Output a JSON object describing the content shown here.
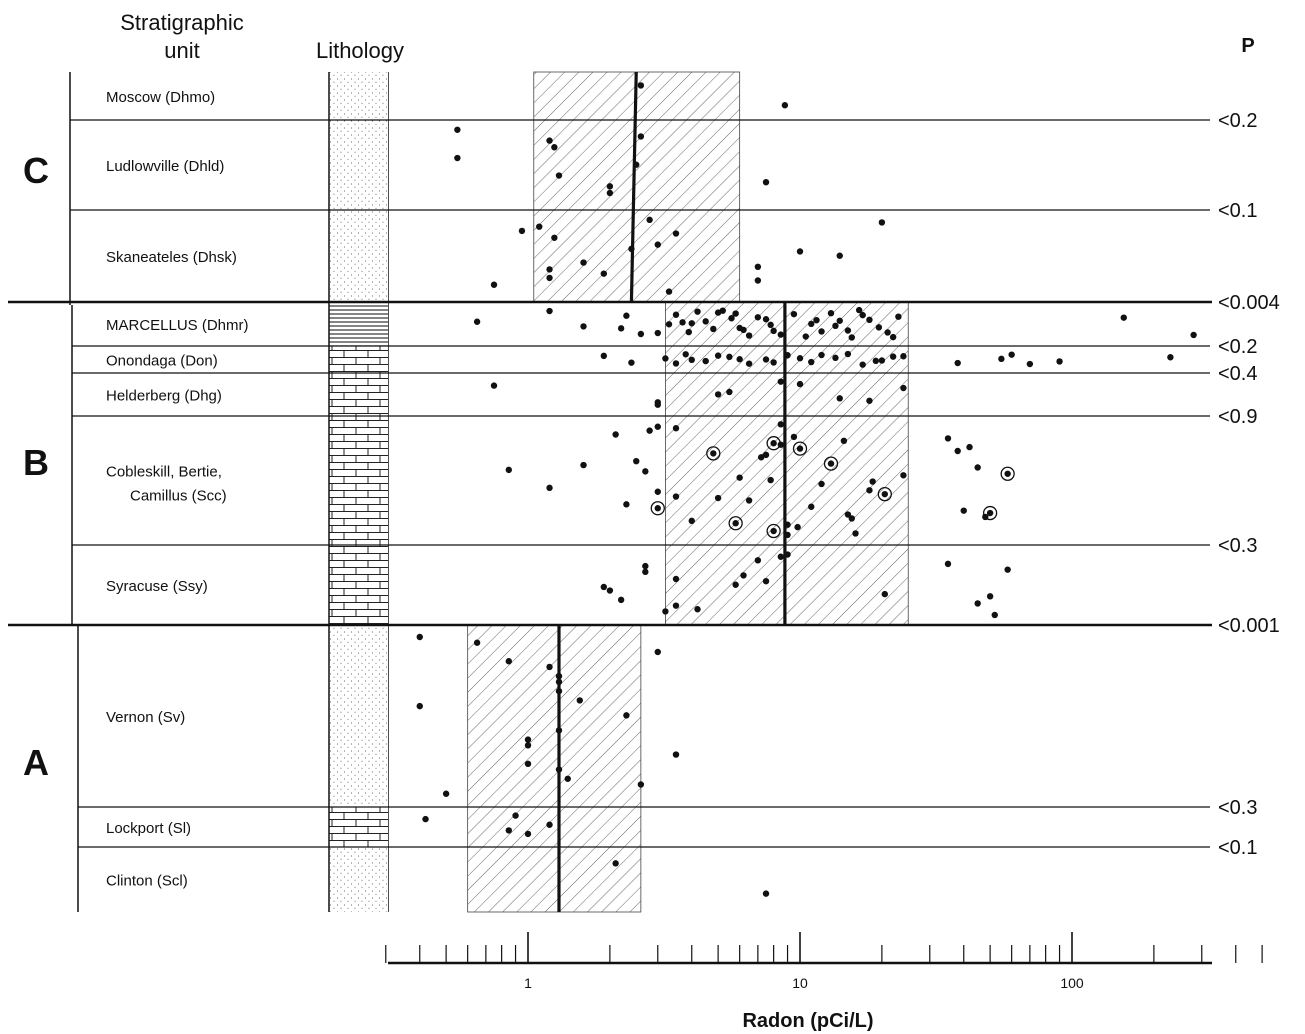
{
  "header": {
    "strat_line1": "Stratigraphic",
    "strat_line2": "unit",
    "lithology": "Lithology",
    "p": "P"
  },
  "chart_data": {
    "type": "scatter",
    "title": "",
    "xlabel": "Radon (pCi/L)",
    "ylabel": "",
    "xscale": "log",
    "xlim": [
      0.3,
      500
    ],
    "xticks": [
      {
        "v": 1,
        "label": "1"
      },
      {
        "v": 10,
        "label": "10"
      },
      {
        "v": 100,
        "label": "100"
      }
    ],
    "groups": [
      {
        "label": "C",
        "units": [
          0,
          1,
          2
        ]
      },
      {
        "label": "B",
        "units": [
          3,
          4,
          5,
          6,
          7
        ]
      },
      {
        "label": "A",
        "units": [
          8,
          9,
          10
        ]
      }
    ],
    "units": [
      {
        "name": "Moscow (Dhmo)",
        "p": ""
      },
      {
        "name": "Ludlowville (Dhld)",
        "p": "<0.2"
      },
      {
        "name": "Skaneateles (Dhsk)",
        "p": "<0.1"
      },
      {
        "name": "MARCELLUS (Dhmr)",
        "p": "<0.004"
      },
      {
        "name": "Onondaga (Don)",
        "p": "<0.2"
      },
      {
        "name": "Helderberg (Dhg)",
        "p": "<0.4"
      },
      {
        "name": "Cobleskill, Bertie, Camillus (Scc)",
        "p": "<0.9"
      },
      {
        "name": "Syracuse (Ssy)",
        "p": "<0.3"
      },
      {
        "name": "Vernon (Sv)",
        "p": "<0.001"
      },
      {
        "name": "Lockport (Sl)",
        "p": "<0.3"
      },
      {
        "name": "Clinton (Scl)",
        "p": "<0.1"
      }
    ],
    "group_stats": [
      {
        "group": "C",
        "median": [
          2.5,
          2.4
        ],
        "range": [
          1.05,
          6.0
        ]
      },
      {
        "group": "B",
        "median": [
          8.8,
          8.8
        ],
        "range": [
          3.2,
          25
        ]
      },
      {
        "group": "A",
        "median": [
          1.3,
          1.3
        ],
        "range": [
          0.6,
          2.6
        ]
      }
    ],
    "points": [
      {
        "x": 2.6,
        "unit": 0
      },
      {
        "x": 8.8,
        "unit": 0
      },
      {
        "x": 1.2,
        "unit": 1
      },
      {
        "x": 2.0,
        "unit": 1
      },
      {
        "x": 0.55,
        "unit": 1
      },
      {
        "x": 0.55,
        "unit": 1
      },
      {
        "x": 1.3,
        "unit": 1
      },
      {
        "x": 1.25,
        "unit": 1
      },
      {
        "x": 2.0,
        "unit": 1
      },
      {
        "x": 2.5,
        "unit": 1
      },
      {
        "x": 2.6,
        "unit": 1
      },
      {
        "x": 7.5,
        "unit": 1
      },
      {
        "x": 0.95,
        "unit": 2
      },
      {
        "x": 1.2,
        "unit": 2
      },
      {
        "x": 2.4,
        "unit": 2
      },
      {
        "x": 2.8,
        "unit": 2
      },
      {
        "x": 7.0,
        "unit": 2
      },
      {
        "x": 1.25,
        "unit": 2
      },
      {
        "x": 0.75,
        "unit": 2
      },
      {
        "x": 14.0,
        "unit": 2
      },
      {
        "x": 1.1,
        "unit": 2
      },
      {
        "x": 1.9,
        "unit": 2
      },
      {
        "x": 3.0,
        "unit": 2
      },
      {
        "x": 3.3,
        "unit": 2
      },
      {
        "x": 1.6,
        "unit": 2
      },
      {
        "x": 3.5,
        "unit": 2
      },
      {
        "x": 7.0,
        "unit": 2
      },
      {
        "x": 10.0,
        "unit": 2
      },
      {
        "x": 20.0,
        "unit": 2
      },
      {
        "x": 1.2,
        "unit": 2
      },
      {
        "x": 3.5,
        "unit": 3
      },
      {
        "x": 3.9,
        "unit": 3
      },
      {
        "x": 4.5,
        "unit": 3
      },
      {
        "x": 5.2,
        "unit": 3
      },
      {
        "x": 6.0,
        "unit": 3
      },
      {
        "x": 7.0,
        "unit": 3
      },
      {
        "x": 8.5,
        "unit": 3
      },
      {
        "x": 11.0,
        "unit": 3
      },
      {
        "x": 13.0,
        "unit": 3
      },
      {
        "x": 15.0,
        "unit": 3
      },
      {
        "x": 18.0,
        "unit": 3
      },
      {
        "x": 22.0,
        "unit": 3
      },
      {
        "x": 1.6,
        "unit": 3
      },
      {
        "x": 2.3,
        "unit": 3
      },
      {
        "x": 3.0,
        "unit": 3
      },
      {
        "x": 3.7,
        "unit": 3
      },
      {
        "x": 4.2,
        "unit": 3
      },
      {
        "x": 4.8,
        "unit": 3
      },
      {
        "x": 5.6,
        "unit": 3
      },
      {
        "x": 6.5,
        "unit": 3
      },
      {
        "x": 7.8,
        "unit": 3
      },
      {
        "x": 9.5,
        "unit": 3
      },
      {
        "x": 12.0,
        "unit": 3
      },
      {
        "x": 14.0,
        "unit": 3
      },
      {
        "x": 16.5,
        "unit": 3
      },
      {
        "x": 19.5,
        "unit": 3
      },
      {
        "x": 23.0,
        "unit": 3
      },
      {
        "x": 2.6,
        "unit": 3
      },
      {
        "x": 4.0,
        "unit": 3
      },
      {
        "x": 5.0,
        "unit": 3
      },
      {
        "x": 6.2,
        "unit": 3
      },
      {
        "x": 7.5,
        "unit": 3
      },
      {
        "x": 10.5,
        "unit": 3
      },
      {
        "x": 13.5,
        "unit": 3
      },
      {
        "x": 17.0,
        "unit": 3
      },
      {
        "x": 21.0,
        "unit": 3
      },
      {
        "x": 0.65,
        "unit": 3
      },
      {
        "x": 1.2,
        "unit": 3
      },
      {
        "x": 2.2,
        "unit": 3
      },
      {
        "x": 155,
        "unit": 3
      },
      {
        "x": 280,
        "unit": 3
      },
      {
        "x": 3.3,
        "unit": 3
      },
      {
        "x": 5.8,
        "unit": 3
      },
      {
        "x": 8.0,
        "unit": 3
      },
      {
        "x": 11.5,
        "unit": 3
      },
      {
        "x": 15.5,
        "unit": 3
      },
      {
        "x": 1.9,
        "unit": 4
      },
      {
        "x": 2.4,
        "unit": 4
      },
      {
        "x": 3.2,
        "unit": 4
      },
      {
        "x": 3.8,
        "unit": 4
      },
      {
        "x": 4.5,
        "unit": 4
      },
      {
        "x": 5.5,
        "unit": 4
      },
      {
        "x": 6.5,
        "unit": 4
      },
      {
        "x": 7.5,
        "unit": 4
      },
      {
        "x": 9.0,
        "unit": 4
      },
      {
        "x": 11.0,
        "unit": 4
      },
      {
        "x": 13.5,
        "unit": 4
      },
      {
        "x": 17.0,
        "unit": 4
      },
      {
        "x": 20.0,
        "unit": 4
      },
      {
        "x": 24.0,
        "unit": 4
      },
      {
        "x": 38.0,
        "unit": 4
      },
      {
        "x": 55.0,
        "unit": 4
      },
      {
        "x": 60.0,
        "unit": 4
      },
      {
        "x": 90.0,
        "unit": 4
      },
      {
        "x": 230,
        "unit": 4
      },
      {
        "x": 70.0,
        "unit": 4
      },
      {
        "x": 4.0,
        "unit": 4
      },
      {
        "x": 5.0,
        "unit": 4
      },
      {
        "x": 8.0,
        "unit": 4
      },
      {
        "x": 10.0,
        "unit": 4
      },
      {
        "x": 15.0,
        "unit": 4
      },
      {
        "x": 19.0,
        "unit": 4
      },
      {
        "x": 22.0,
        "unit": 4
      },
      {
        "x": 3.5,
        "unit": 4
      },
      {
        "x": 6.0,
        "unit": 4
      },
      {
        "x": 12.0,
        "unit": 4
      },
      {
        "x": 0.75,
        "unit": 5
      },
      {
        "x": 3.0,
        "unit": 5
      },
      {
        "x": 5.5,
        "unit": 5
      },
      {
        "x": 8.5,
        "unit": 5
      },
      {
        "x": 14.0,
        "unit": 5
      },
      {
        "x": 24.0,
        "unit": 5
      },
      {
        "x": 3.0,
        "unit": 5
      },
      {
        "x": 5.0,
        "unit": 5
      },
      {
        "x": 10.0,
        "unit": 5
      },
      {
        "x": 18.0,
        "unit": 5
      },
      {
        "x": 8.0,
        "unit": 6,
        "ring": true
      },
      {
        "x": 50.0,
        "unit": 6,
        "ring": true
      },
      {
        "x": 0.85,
        "unit": 6
      },
      {
        "x": 3.0,
        "unit": 6
      },
      {
        "x": 3.5,
        "unit": 6
      },
      {
        "x": 4.8,
        "unit": 6,
        "ring": true
      },
      {
        "x": 5.8,
        "unit": 6,
        "ring": true
      },
      {
        "x": 7.8,
        "unit": 6
      },
      {
        "x": 9.5,
        "unit": 6
      },
      {
        "x": 11.0,
        "unit": 6
      },
      {
        "x": 13.0,
        "unit": 6,
        "ring": true
      },
      {
        "x": 16.0,
        "unit": 6
      },
      {
        "x": 18.0,
        "unit": 6
      },
      {
        "x": 42.0,
        "unit": 6
      },
      {
        "x": 48.0,
        "unit": 6
      },
      {
        "x": 58.0,
        "unit": 6,
        "ring": true
      },
      {
        "x": 2.8,
        "unit": 6
      },
      {
        "x": 6.5,
        "unit": 6
      },
      {
        "x": 7.2,
        "unit": 6
      },
      {
        "x": 9.8,
        "unit": 6
      },
      {
        "x": 12.0,
        "unit": 6
      },
      {
        "x": 14.5,
        "unit": 6
      },
      {
        "x": 40.0,
        "unit": 6
      },
      {
        "x": 45.0,
        "unit": 6
      },
      {
        "x": 8.5,
        "unit": 6
      },
      {
        "x": 20.5,
        "unit": 6,
        "ring": true
      },
      {
        "x": 38.0,
        "unit": 6
      },
      {
        "x": 4.0,
        "unit": 6
      },
      {
        "x": 6.0,
        "unit": 6
      },
      {
        "x": 2.1,
        "unit": 6
      },
      {
        "x": 2.3,
        "unit": 6
      },
      {
        "x": 2.5,
        "unit": 6
      },
      {
        "x": 8.0,
        "unit": 6,
        "ring": true
      },
      {
        "x": 1.2,
        "unit": 6
      },
      {
        "x": 8.5,
        "unit": 6
      },
      {
        "x": 15.0,
        "unit": 6
      },
      {
        "x": 2.7,
        "unit": 6
      },
      {
        "x": 3.5,
        "unit": 6
      },
      {
        "x": 5.0,
        "unit": 6
      },
      {
        "x": 7.5,
        "unit": 6
      },
      {
        "x": 9.0,
        "unit": 6
      },
      {
        "x": 18.5,
        "unit": 6
      },
      {
        "x": 35.0,
        "unit": 6
      },
      {
        "x": 3.0,
        "unit": 6,
        "ring": true
      },
      {
        "x": 1.6,
        "unit": 6
      },
      {
        "x": 9.0,
        "unit": 6
      },
      {
        "x": 3.0,
        "unit": 6
      },
      {
        "x": 10.0,
        "unit": 6,
        "ring": true
      },
      {
        "x": 15.5,
        "unit": 6
      },
      {
        "x": 24.0,
        "unit": 6
      },
      {
        "x": 35.0,
        "unit": 7
      },
      {
        "x": 45.0,
        "unit": 7
      },
      {
        "x": 3.5,
        "unit": 7
      },
      {
        "x": 9.0,
        "unit": 7
      },
      {
        "x": 20.5,
        "unit": 7
      },
      {
        "x": 58.0,
        "unit": 7
      },
      {
        "x": 4.2,
        "unit": 7
      },
      {
        "x": 5.8,
        "unit": 7
      },
      {
        "x": 7.0,
        "unit": 7
      },
      {
        "x": 2.2,
        "unit": 7
      },
      {
        "x": 6.2,
        "unit": 7
      },
      {
        "x": 52.0,
        "unit": 7
      },
      {
        "x": 2.0,
        "unit": 7
      },
      {
        "x": 2.7,
        "unit": 7
      },
      {
        "x": 3.5,
        "unit": 7
      },
      {
        "x": 7.5,
        "unit": 7
      },
      {
        "x": 8.5,
        "unit": 7
      },
      {
        "x": 50.0,
        "unit": 7
      },
      {
        "x": 2.7,
        "unit": 7
      },
      {
        "x": 3.2,
        "unit": 7
      },
      {
        "x": 1.9,
        "unit": 7
      },
      {
        "x": 0.85,
        "unit": 8
      },
      {
        "x": 1.0,
        "unit": 8
      },
      {
        "x": 1.55,
        "unit": 8
      },
      {
        "x": 0.4,
        "unit": 8
      },
      {
        "x": 1.0,
        "unit": 8
      },
      {
        "x": 1.3,
        "unit": 8
      },
      {
        "x": 1.4,
        "unit": 8
      },
      {
        "x": 2.3,
        "unit": 8
      },
      {
        "x": 3.0,
        "unit": 8
      },
      {
        "x": 3.5,
        "unit": 8
      },
      {
        "x": 1.3,
        "unit": 8
      },
      {
        "x": 0.5,
        "unit": 8
      },
      {
        "x": 1.3,
        "unit": 8
      },
      {
        "x": 1.2,
        "unit": 8
      },
      {
        "x": 1.3,
        "unit": 8
      },
      {
        "x": 0.4,
        "unit": 8
      },
      {
        "x": 0.65,
        "unit": 8
      },
      {
        "x": 1.0,
        "unit": 8
      },
      {
        "x": 1.3,
        "unit": 8
      },
      {
        "x": 2.6,
        "unit": 8
      },
      {
        "x": 0.42,
        "unit": 9
      },
      {
        "x": 1.0,
        "unit": 9
      },
      {
        "x": 1.2,
        "unit": 9
      },
      {
        "x": 0.9,
        "unit": 9
      },
      {
        "x": 0.85,
        "unit": 9
      },
      {
        "x": 2.1,
        "unit": 10
      },
      {
        "x": 7.5,
        "unit": 10
      }
    ]
  }
}
